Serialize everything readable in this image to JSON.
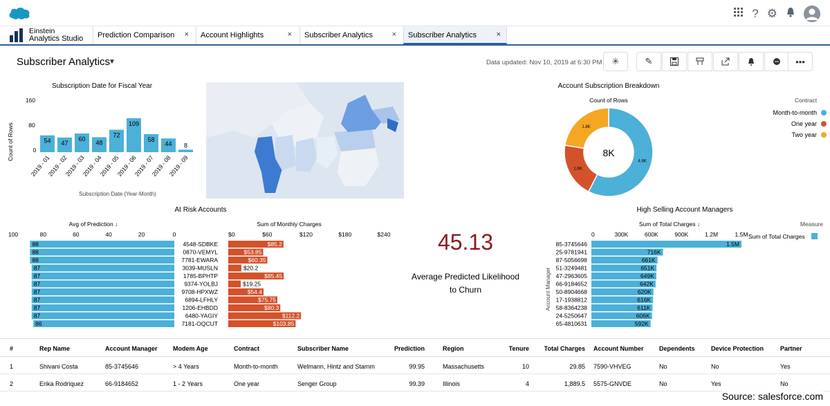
{
  "app": {
    "studio_line1": "Einstein",
    "studio_line2": "Analytics Studio"
  },
  "tabs": [
    {
      "label": "Prediction Comparison"
    },
    {
      "label": "Account Highlights"
    },
    {
      "label": "Subscriber Analytics"
    },
    {
      "label": "Subscriber Analytics"
    }
  ],
  "tab_close": "×",
  "header": {
    "title": "Subscriber Analytics",
    "updated": "Data updated: Nov 10, 2019 at 6:30 PM"
  },
  "toolbar_icons": [
    "settings-icon",
    "edit-icon",
    "save-icon",
    "bookmark-icon",
    "share-icon",
    "notify-icon",
    "comment-icon",
    "more-icon"
  ],
  "subs_chart": {
    "title": "Subscription Date for Fiscal Year",
    "ylabel": "Count of Rows",
    "xlabel": "Subscription Date (Year-Month)",
    "yticks": [
      "160",
      "80",
      "0"
    ]
  },
  "chart_data": [
    {
      "type": "bar",
      "title": "Subscription Date for Fiscal Year",
      "xlabel": "Subscription Date (Year-Month)",
      "ylabel": "Count of Rows",
      "categories": [
        "2019 - 01",
        "2019 - 02",
        "2019 - 03",
        "2019 - 04",
        "2019 - 05",
        "2019 - 06",
        "2019 - 07",
        "2019 - 08",
        "2019 - 09"
      ],
      "values": [
        54,
        47,
        60,
        48,
        72,
        109,
        58,
        44,
        8
      ],
      "ylim": [
        0,
        160
      ]
    },
    {
      "type": "pie",
      "title": "Account Subscription Breakdown",
      "subtitle": "Count of Rows",
      "center": "8K",
      "legend_title": "Contract",
      "categories": [
        "Month-to-month",
        "One year",
        "Two year"
      ],
      "values": [
        4.6,
        1.6,
        1.8
      ],
      "slice_labels": [
        "4.6K",
        "1.6K",
        "1.8K"
      ],
      "colors": [
        "#4cb0d8",
        "#d4522a",
        "#f5a623"
      ]
    },
    {
      "type": "bar",
      "title": "At Risk Accounts",
      "xlabel": "Avg of Prediction ↓",
      "xticks": [
        "100",
        "80",
        "60",
        "40",
        "20",
        "0"
      ],
      "categories": [
        "4548-SDBKE",
        "0870-VEMYL",
        "7781-EWARA",
        "3039-MUSLN",
        "1785-BPHTP",
        "9374-YOLBJ",
        "9708-HPXWZ",
        "6894-LFHLY",
        "1206-EHBDD",
        "6480-YAGIY",
        "7181-OQCUT"
      ],
      "values": [
        88,
        88,
        88,
        87,
        87,
        87,
        87,
        87,
        87,
        87,
        86
      ]
    },
    {
      "type": "bar",
      "xlabel": "Sum of Monthly Charges",
      "xticks": [
        "$0",
        "$60",
        "$120",
        "$180",
        "$240"
      ],
      "categories": [
        "4548-SDBKE",
        "0870-VEMYL",
        "7781-EWARA",
        "3039-MUSLN",
        "1785-BPHTP",
        "9374-YOLBJ",
        "9708-HPXWZ",
        "6894-LFHLY",
        "1206-EHBDD",
        "6480-YAGIY",
        "7181-OQCUT"
      ],
      "values": [
        85.2,
        53.85,
        60.35,
        20.2,
        85.45,
        19.25,
        54.4,
        75.75,
        80.3,
        112.2,
        103.85
      ],
      "labels": [
        "$85.2",
        "$53.85",
        "$60.35",
        "$20.2",
        "$85.45",
        "$19.25",
        "$54.4",
        "$75.75",
        "$80.3",
        "$112.2",
        "$103.85"
      ]
    },
    {
      "type": "bar",
      "title": "High Selling Account Managers",
      "xlabel": "Sum of Total Charges ↓",
      "ylabel": "Account Manager",
      "legend_title": "Measure",
      "legend": "Sum of Total Charges",
      "xticks": [
        "0",
        "300K",
        "600K",
        "900K",
        "1.2M",
        "1.5M"
      ],
      "categories": [
        "85-3745646",
        "25-9781941",
        "87-5056698",
        "51-3249481",
        "47-2963605",
        "66-9184652",
        "50-8904668",
        "17-1938812",
        "58-8364238",
        "24-5250647",
        "65-4810631"
      ],
      "values": [
        1500,
        716,
        661,
        651,
        649,
        642,
        620,
        616,
        611,
        606,
        592
      ],
      "labels": [
        "1.5M",
        "716K",
        "661K",
        "651K",
        "649K",
        "642K",
        "620K",
        "616K",
        "611K",
        "606K",
        "592K"
      ]
    }
  ],
  "kpi": {
    "value": "45.13",
    "label_line1": "Average Predicted Likelihood",
    "label_line2": "to Churn"
  },
  "map": {
    "name": "Subscriber states map"
  },
  "table": {
    "headers": [
      "#",
      "Rep Name",
      "Account Manager",
      "Modem Age",
      "Contract",
      "Subscriber Name",
      "Prediction",
      "Region",
      "Tenure",
      "Total Charges",
      "Account Number",
      "Dependents",
      "Device Protection",
      "Partner"
    ],
    "rows": [
      [
        "1",
        "Shivani Costa",
        "85-3745646",
        "> 4 Years",
        "Month-to-month",
        "Welmann, Hintz and Stamm",
        "99.95",
        "Massachusetts",
        "10",
        "29.85",
        "7590-VHVEG",
        "No",
        "No",
        "Yes"
      ],
      [
        "2",
        "Erika Rodriquez",
        "66-9184652",
        "1 - 2 Years",
        "One year",
        "Senger Group",
        "99.39",
        "Illinois",
        "4",
        "1,889.5",
        "5575-GNVDE",
        "No",
        "Yes",
        "No"
      ]
    ]
  },
  "source": "Source: salesforce.com",
  "colors": {
    "blue": "#4cb0d8",
    "red": "#d4522a",
    "orange": "#f5a623",
    "kpi": "#8b1a1a",
    "accent": "#2f5f9d"
  }
}
